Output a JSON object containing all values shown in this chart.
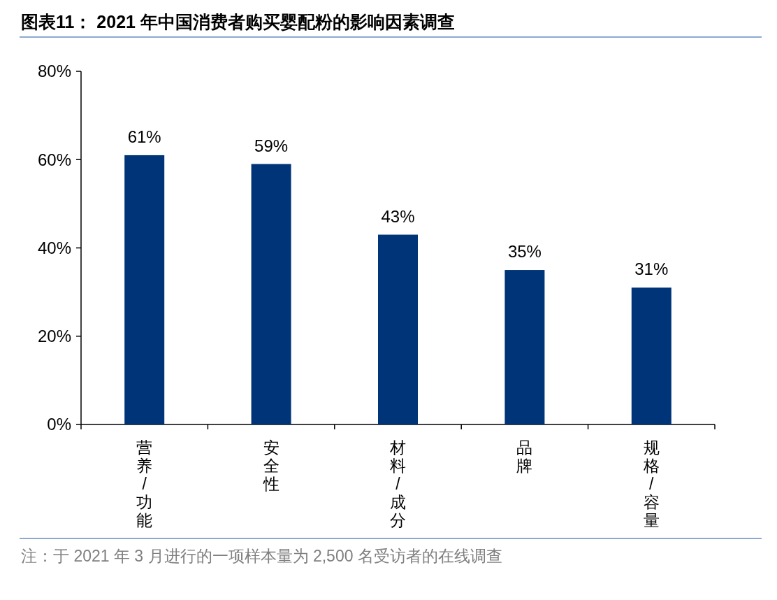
{
  "chart_data": {
    "type": "bar",
    "title": "图表11： 2021 年中国消费者购买婴配粉的影响因素调查",
    "categories": [
      "营养/功能",
      "安全性",
      "材料/成分",
      "品牌",
      "规格/容量"
    ],
    "values": [
      61,
      59,
      43,
      35,
      31
    ],
    "value_labels": [
      "61%",
      "59%",
      "43%",
      "35%",
      "31%"
    ],
    "color": "#003478",
    "ylim": [
      0,
      80
    ],
    "yticks": [
      {
        "value": 0,
        "label": "0%"
      },
      {
        "value": 20,
        "label": "20%"
      },
      {
        "value": 40,
        "label": "40%"
      },
      {
        "value": 60,
        "label": "60%"
      },
      {
        "value": 80,
        "label": "80%"
      }
    ],
    "annotations": [
      "注：于 2021 年 3 月进行的一项样本量为 2,500 名受访者的在线调查"
    ]
  }
}
